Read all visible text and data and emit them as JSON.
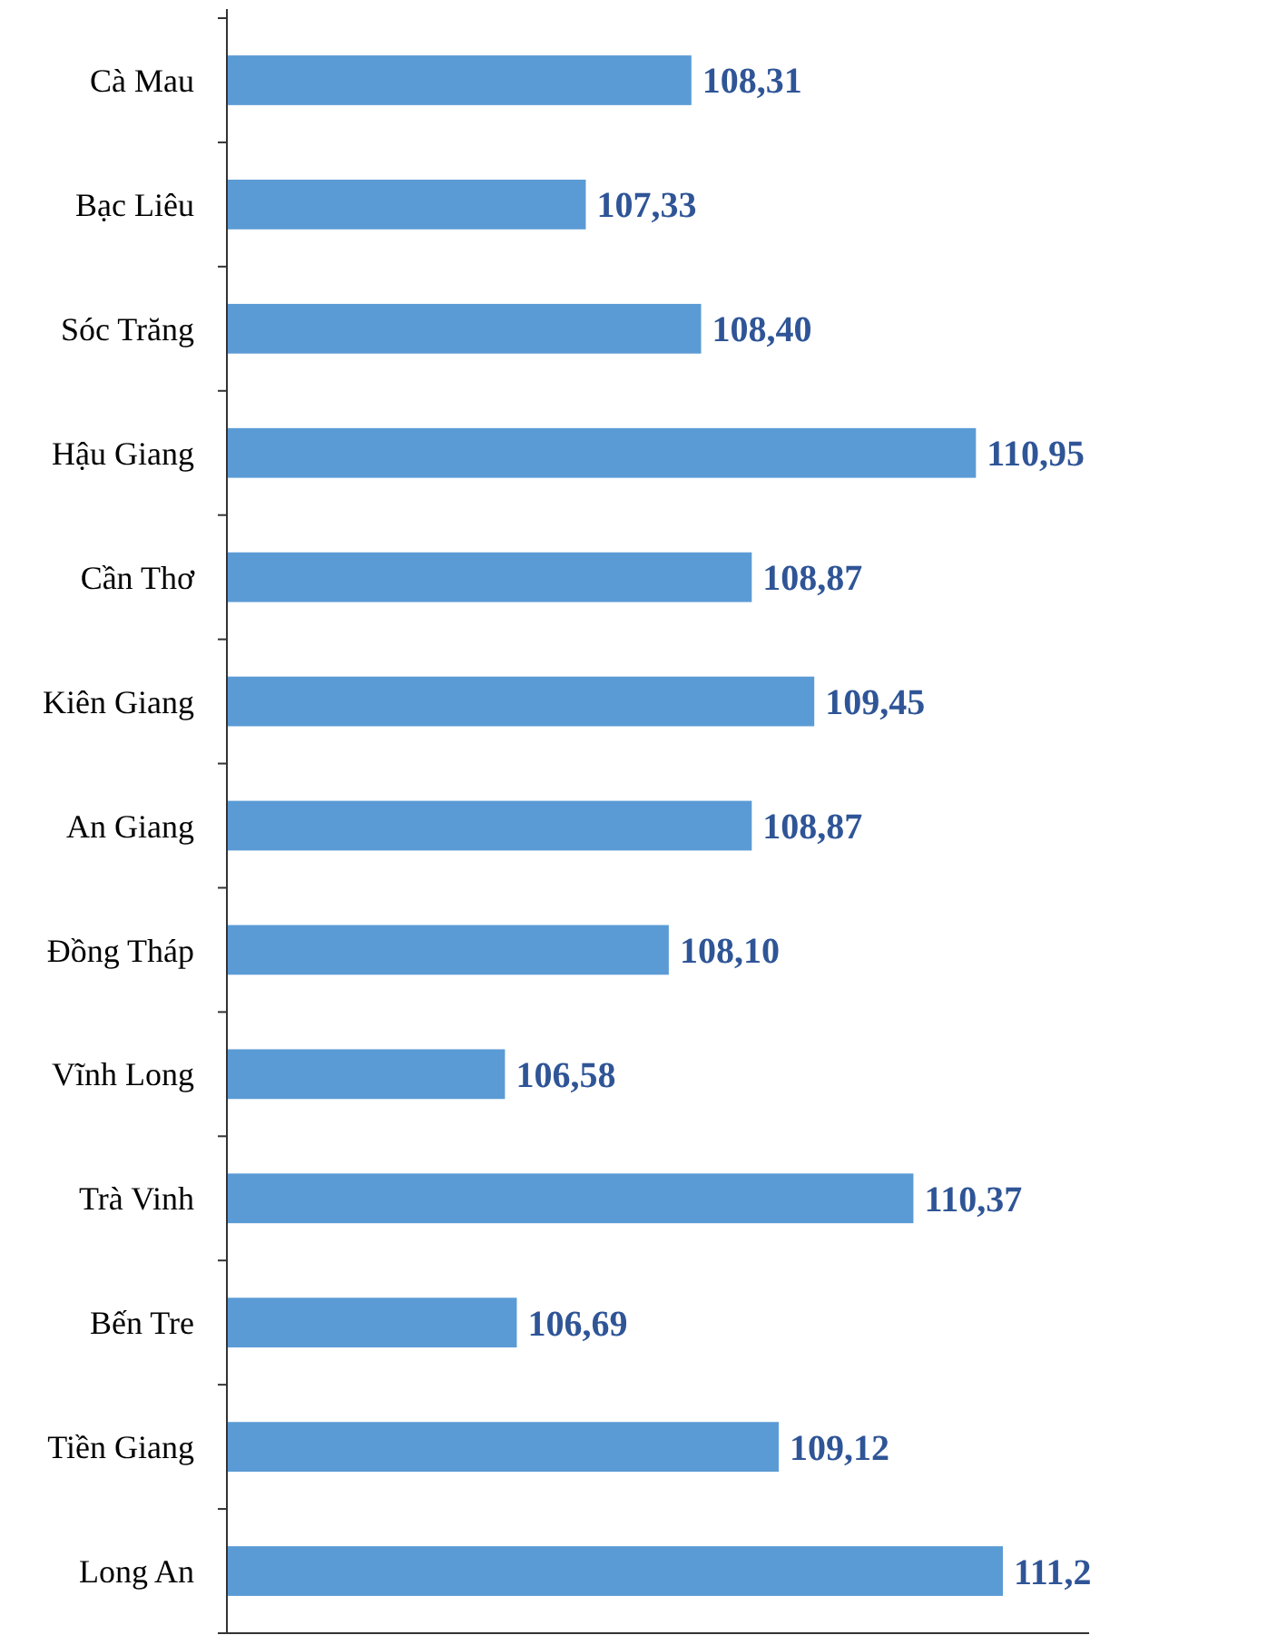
{
  "chart_data": {
    "type": "bar",
    "orientation": "horizontal",
    "categories": [
      "Cà Mau",
      "Bạc Liêu",
      "Sóc Trăng",
      "Hậu Giang",
      "Cần Thơ",
      "Kiên Giang",
      "An Giang",
      "Đồng Tháp",
      "Vĩnh Long",
      "Trà Vinh",
      "Bến Tre",
      "Tiền Giang",
      "Long An"
    ],
    "values": [
      108.31,
      107.33,
      108.4,
      110.95,
      108.87,
      109.45,
      108.87,
      108.1,
      106.58,
      110.37,
      106.69,
      109.12,
      111.2
    ],
    "value_labels": [
      "108,31",
      "107,33",
      "108,40",
      "110,95",
      "108,87",
      "109,45",
      "108,87",
      "108,10",
      "106,58",
      "110,37",
      "106,69",
      "109,12",
      "111,2"
    ],
    "color": "#5b9bd5",
    "xlim": [
      104,
      112
    ],
    "tick_labels": "y"
  }
}
